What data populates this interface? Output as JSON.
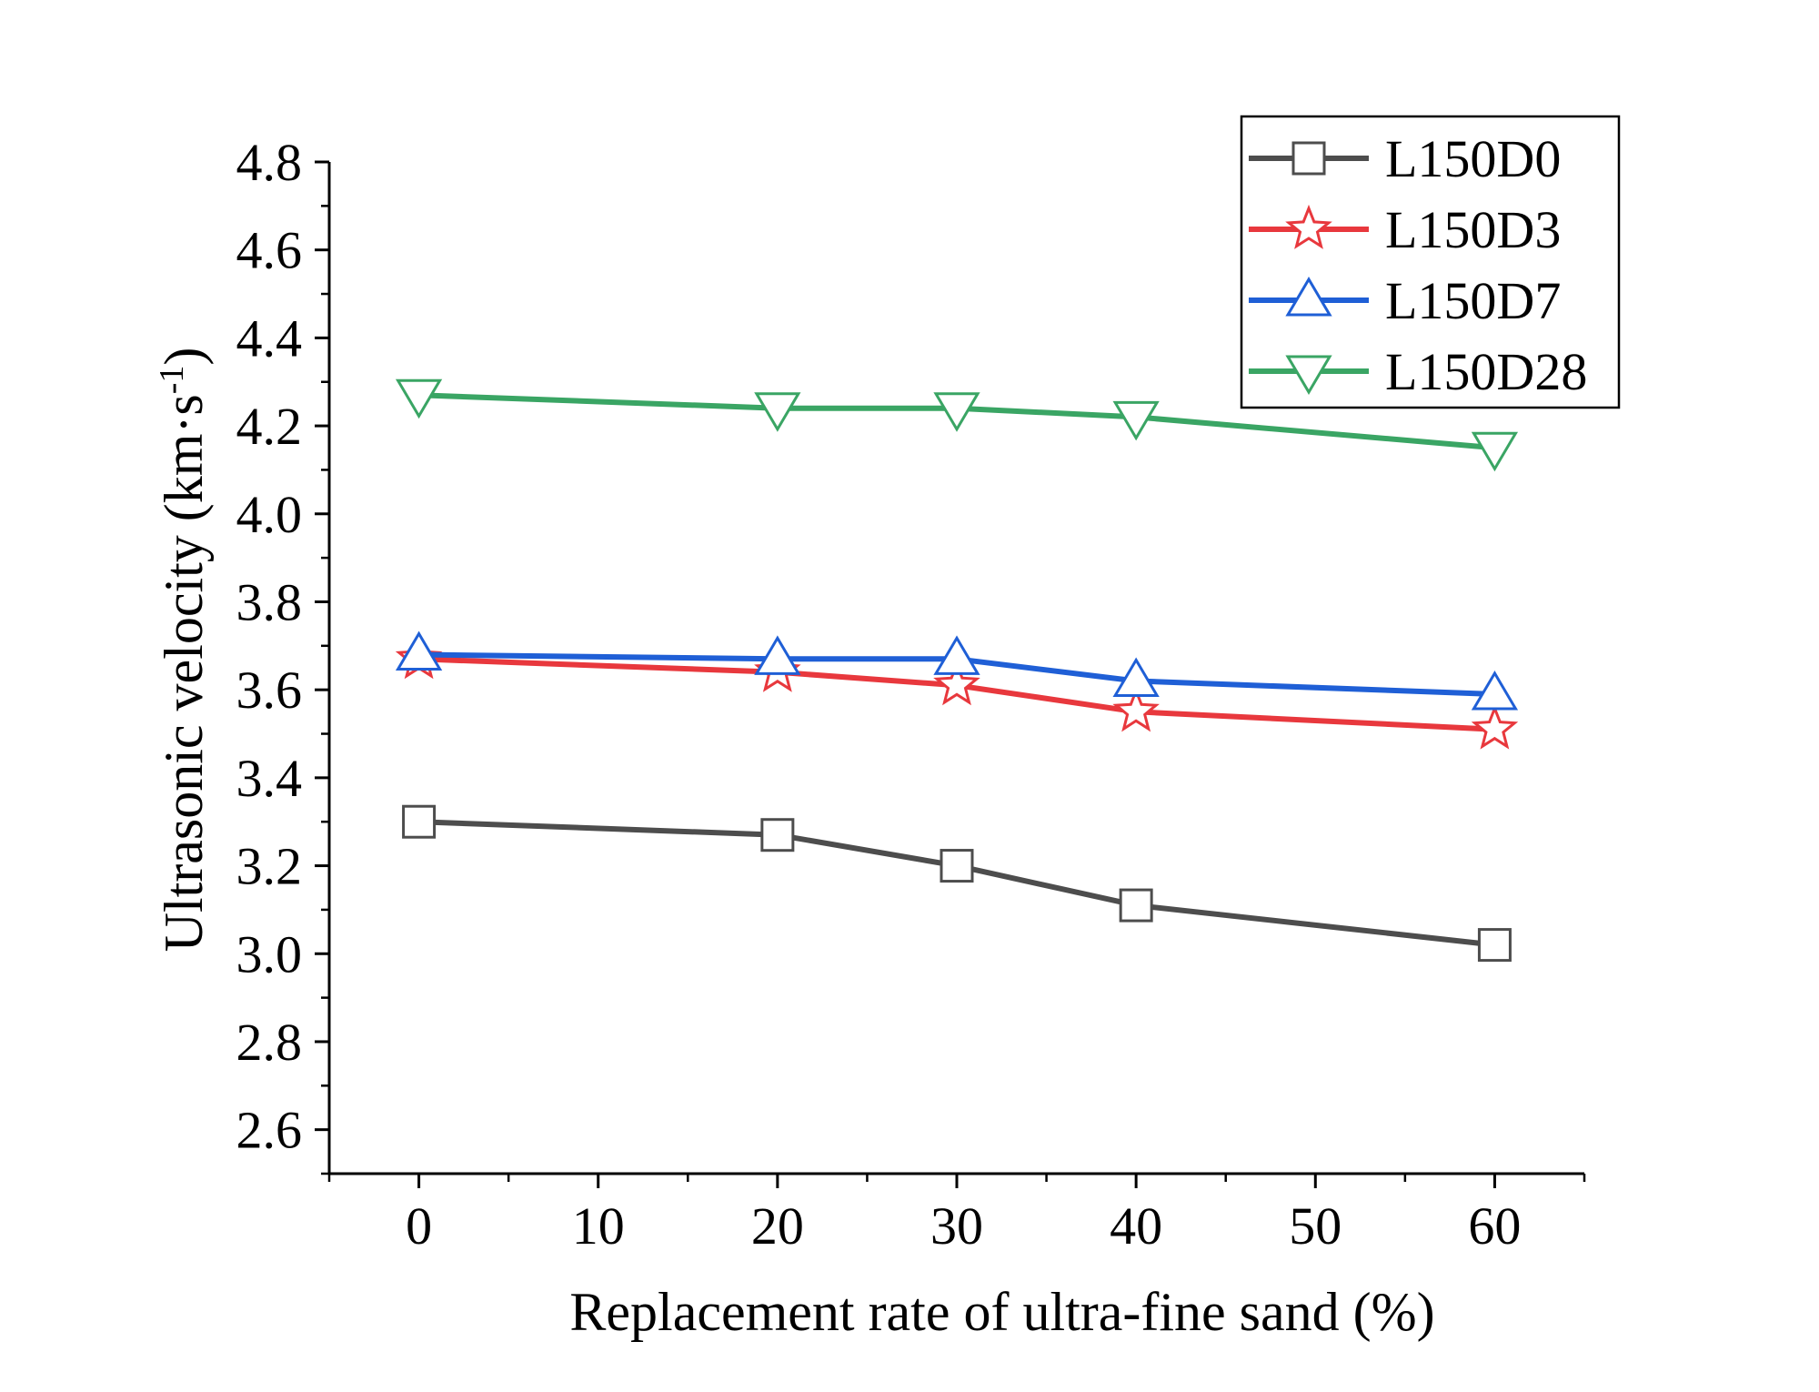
{
  "chart_data": {
    "type": "line",
    "title": "",
    "xlabel": "Replacement rate of ultra-fine sand (%)",
    "ylabel": {
      "main": "Ultrasonic velocity (km·s",
      "sup": "-1",
      "close": ")"
    },
    "xlim": [
      -5,
      65
    ],
    "ylim": [
      2.5,
      4.8
    ],
    "xticks": [
      "0",
      "10",
      "20",
      "30",
      "40",
      "50",
      "60"
    ],
    "yticks": [
      "2.6",
      "2.8",
      "3.0",
      "3.2",
      "3.4",
      "3.6",
      "3.8",
      "4.0",
      "4.2",
      "4.4",
      "4.6",
      "4.8"
    ],
    "legend_position": "top-right",
    "x": [
      0,
      20,
      30,
      40,
      60
    ],
    "series": [
      {
        "name": "L150D0",
        "marker": "square",
        "color": "#4d4d4d",
        "values": [
          3.3,
          3.27,
          3.2,
          3.11,
          3.02
        ]
      },
      {
        "name": "L150D3",
        "marker": "star",
        "color": "#e8383d",
        "values": [
          3.67,
          3.64,
          3.61,
          3.55,
          3.51
        ]
      },
      {
        "name": "L150D7",
        "marker": "triangle-up",
        "color": "#1f5fd6",
        "values": [
          3.68,
          3.67,
          3.67,
          3.62,
          3.59
        ]
      },
      {
        "name": "L150D28",
        "marker": "triangle-down",
        "color": "#3aa564",
        "values": [
          4.27,
          4.24,
          4.24,
          4.22,
          4.15
        ]
      }
    ]
  }
}
